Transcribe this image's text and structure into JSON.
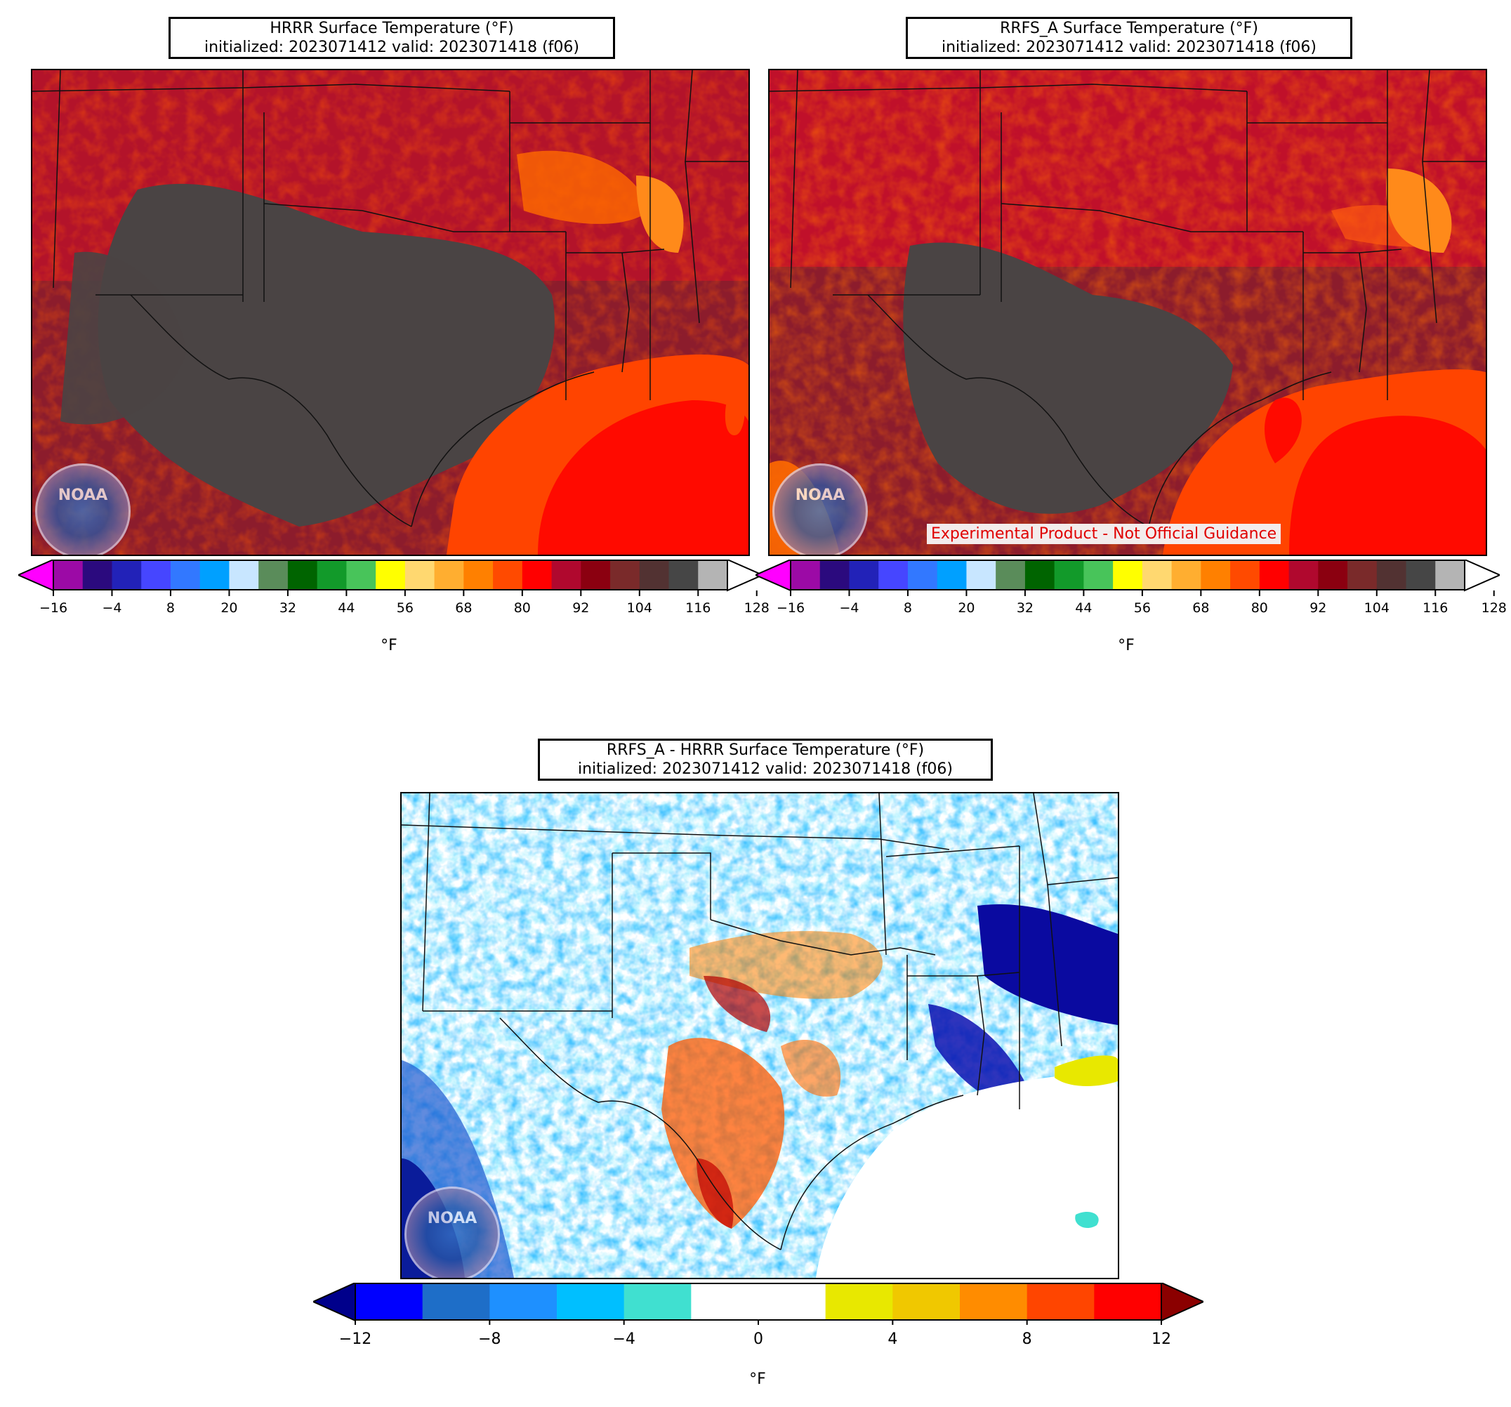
{
  "panels": [
    {
      "id": "hrrr",
      "title_line1": "HRRR Surface Temperature (°F)",
      "title_line2": "initialized: 2023071412 valid: 2023071418 (f06)",
      "units": "°F",
      "watermark": "Experimental Product - Not Official Guidance"
    },
    {
      "id": "rrfs",
      "title_line1": "RRFS_A Surface Temperature (°F)",
      "title_line2": "initialized: 2023071412 valid: 2023071418 (f06)",
      "units": "°F",
      "watermark": "Experimental Product - Not Official Guidance"
    },
    {
      "id": "diff",
      "title_line1": "RRFS_A - HRRR Surface Temperature (°F)",
      "title_line2": "initialized: 2023071412 valid: 2023071418 (f06)",
      "units": "°F"
    }
  ],
  "logo_text": "NOAA",
  "temp_colorbar": {
    "ticks": [
      "−16",
      "−4",
      "8",
      "20",
      "32",
      "44",
      "56",
      "68",
      "80",
      "92",
      "104",
      "116",
      "128"
    ],
    "colors": [
      "#ff00ff",
      "#9c0aa6",
      "#2b0a7e",
      "#2222b8",
      "#4646ff",
      "#3278ff",
      "#00a0ff",
      "#c8e6ff",
      "#5a8c5a",
      "#006400",
      "#129a2a",
      "#48c45a",
      "#ffff00",
      "#ffd870",
      "#ffae30",
      "#ff8000",
      "#ff4a00",
      "#ff0000",
      "#b0082e",
      "#8b0010",
      "#7a2a2a",
      "#523232",
      "#464646",
      "#b4b4b4",
      "#ffffff"
    ]
  },
  "diff_colorbar": {
    "ticks": [
      "−12",
      "−8",
      "−4",
      "0",
      "4",
      "8",
      "12"
    ],
    "colors": [
      "#00008b",
      "#0000ff",
      "#1e6ec8",
      "#1e90ff",
      "#00bfff",
      "#40e0d0",
      "#ffffff",
      "#ffffff",
      "#e8e800",
      "#f0c800",
      "#ff8c00",
      "#ff4500",
      "#ff0000",
      "#8b0000"
    ]
  }
}
